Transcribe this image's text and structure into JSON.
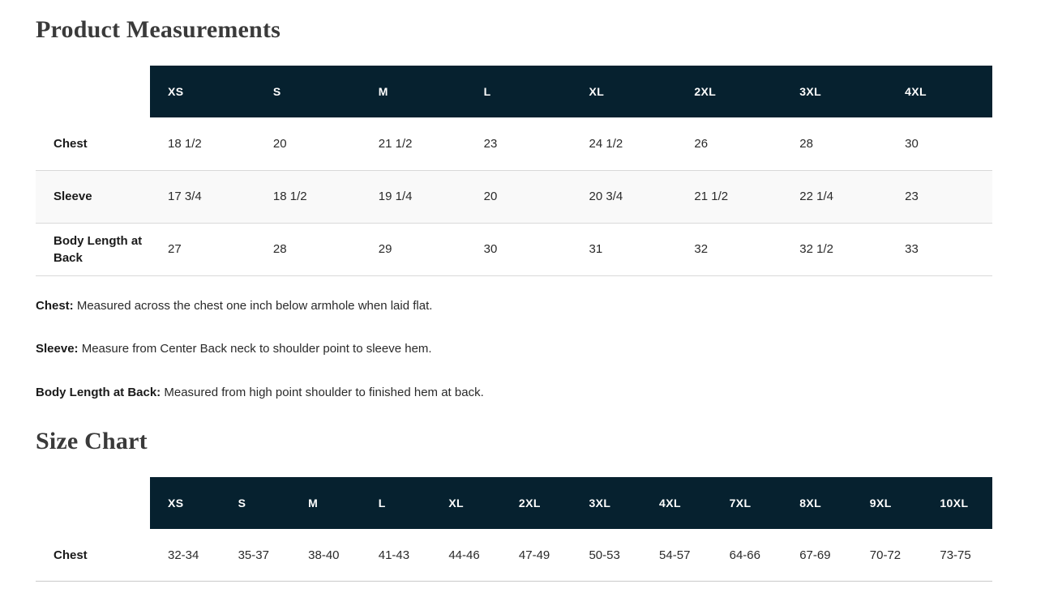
{
  "colors": {
    "header_bg": "#06212f",
    "header_text": "#ffffff",
    "stripe_bg": "#f9f9f9",
    "row_border": "#d9d9d9",
    "title_color": "#3a3a3a"
  },
  "product_measurements": {
    "title": "Product Measurements",
    "columns": [
      "XS",
      "S",
      "M",
      "L",
      "XL",
      "2XL",
      "3XL",
      "4XL"
    ],
    "rows": [
      {
        "label": "Chest",
        "values": [
          "18 1/2",
          "20",
          "21 1/2",
          "23",
          "24 1/2",
          "26",
          "28",
          "30"
        ]
      },
      {
        "label": "Sleeve",
        "values": [
          "17 3/4",
          "18 1/2",
          "19 1/4",
          "20",
          "20 3/4",
          "21 1/2",
          "22 1/4",
          "23"
        ]
      },
      {
        "label": "Body Length at Back",
        "values": [
          "27",
          "28",
          "29",
          "30",
          "31",
          "32",
          "32 1/2",
          "33"
        ]
      }
    ],
    "notes": [
      {
        "term": "Chest:",
        "description": "Measured across the chest one inch below armhole when laid flat."
      },
      {
        "term": "Sleeve:",
        "description": "Measure from Center Back neck to shoulder point to sleeve hem."
      },
      {
        "term": "Body Length at Back:",
        "description": "Measured from high point shoulder to finished hem at back."
      }
    ]
  },
  "size_chart": {
    "title": "Size Chart",
    "columns": [
      "XS",
      "S",
      "M",
      "L",
      "XL",
      "2XL",
      "3XL",
      "4XL",
      "7XL",
      "8XL",
      "9XL",
      "10XL"
    ],
    "rows": [
      {
        "label": "Chest",
        "values": [
          "32-34",
          "35-37",
          "38-40",
          "41-43",
          "44-46",
          "47-49",
          "50-53",
          "54-57",
          "64-66",
          "67-69",
          "70-72",
          "73-75"
        ]
      }
    ]
  }
}
